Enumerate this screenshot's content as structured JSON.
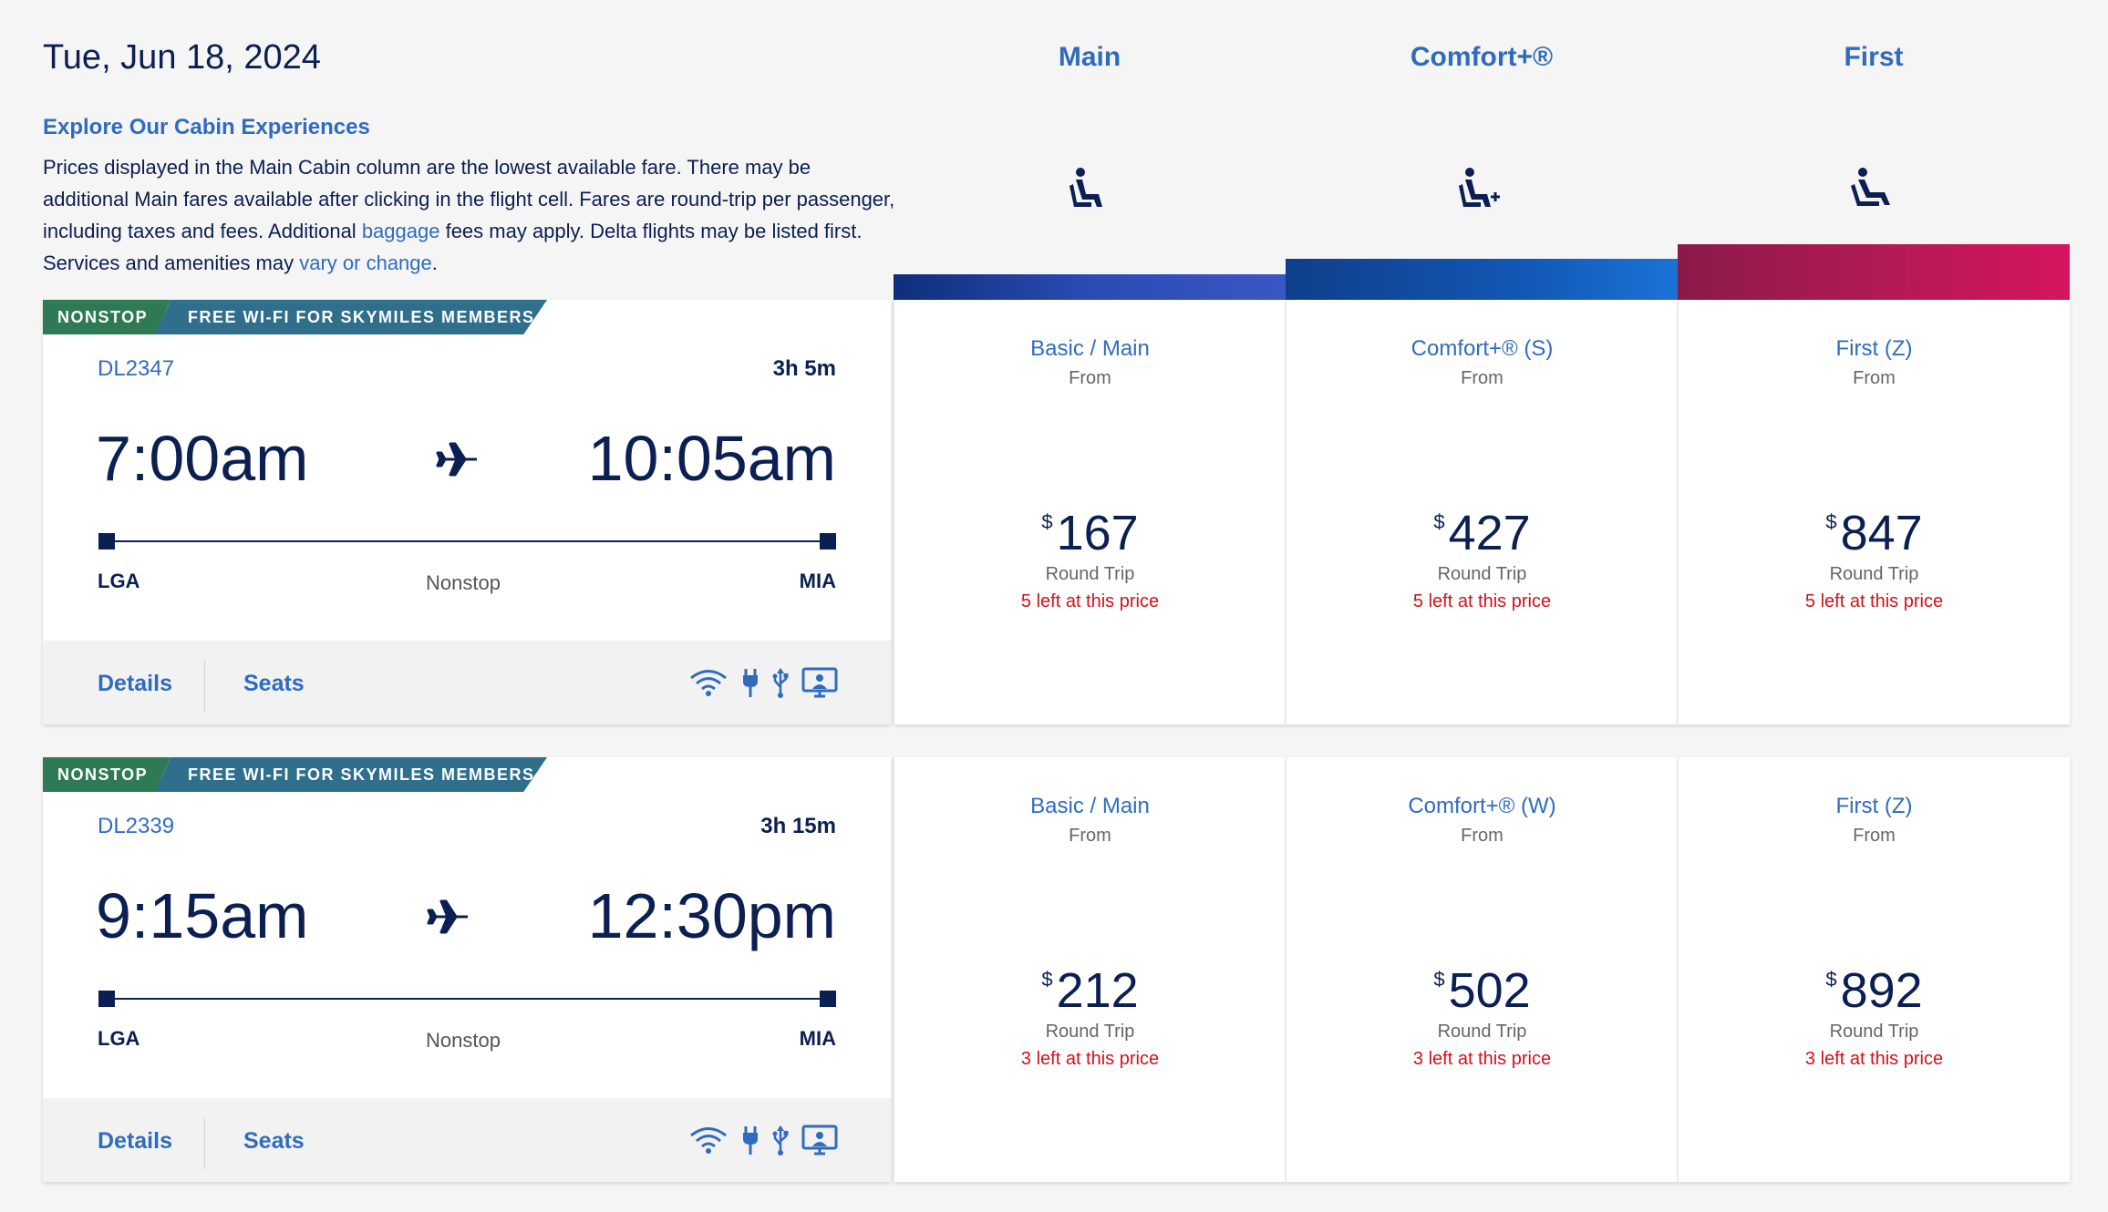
{
  "header": {
    "date": "Tue, Jun 18, 2024",
    "explore_title": "Explore Our Cabin Experiences",
    "description_1": "Prices displayed in the Main Cabin column are the lowest available fare. There may be additional Main fares available after clicking in the flight cell. Fares are round-trip per passenger, including taxes and fees. Additional ",
    "baggage_link": "baggage",
    "description_2": " fees may apply. Delta flights may be listed first. Services and amenities may ",
    "vary_link": "vary or change",
    "description_end": "."
  },
  "cabins": [
    {
      "name": "Main",
      "icon": "seat-icon",
      "color": "#2c4bb5"
    },
    {
      "name": "Comfort+®",
      "icon": "seat-plus-icon",
      "color": "#1257b5"
    },
    {
      "name": "First",
      "icon": "seat-recline-icon",
      "color": "#b41a55"
    }
  ],
  "flights": [
    {
      "tag_nonstop": "NONSTOP",
      "tag_wifi": "FREE WI-FI FOR SKYMILES MEMBERS",
      "flight_number": "DL2347",
      "duration": "3h 5m",
      "depart_time": "7:00am",
      "arrive_time": "10:05am",
      "origin": "LGA",
      "destination": "MIA",
      "stops": "Nonstop",
      "details_label": "Details",
      "seats_label": "Seats",
      "amenities": [
        "wifi-icon",
        "power-icon",
        "usb-icon",
        "entertainment-icon"
      ],
      "fares": [
        {
          "name": "Basic / Main",
          "from": "From",
          "currency": "$",
          "price": "167",
          "trip": "Round Trip",
          "availability": "5 left at this price"
        },
        {
          "name": "Comfort+® (S)",
          "from": "From",
          "currency": "$",
          "price": "427",
          "trip": "Round Trip",
          "availability": "5 left at this price"
        },
        {
          "name": "First (Z)",
          "from": "From",
          "currency": "$",
          "price": "847",
          "trip": "Round Trip",
          "availability": "5 left at this price"
        }
      ]
    },
    {
      "tag_nonstop": "NONSTOP",
      "tag_wifi": "FREE WI-FI FOR SKYMILES MEMBERS",
      "flight_number": "DL2339",
      "duration": "3h 15m",
      "depart_time": "9:15am",
      "arrive_time": "12:30pm",
      "origin": "LGA",
      "destination": "MIA",
      "stops": "Nonstop",
      "details_label": "Details",
      "seats_label": "Seats",
      "amenities": [
        "wifi-icon",
        "power-icon",
        "usb-icon",
        "entertainment-icon"
      ],
      "fares": [
        {
          "name": "Basic / Main",
          "from": "From",
          "currency": "$",
          "price": "212",
          "trip": "Round Trip",
          "availability": "3 left at this price"
        },
        {
          "name": "Comfort+® (W)",
          "from": "From",
          "currency": "$",
          "price": "502",
          "trip": "Round Trip",
          "availability": "3 left at this price"
        },
        {
          "name": "First (Z)",
          "from": "From",
          "currency": "$",
          "price": "892",
          "trip": "Round Trip",
          "availability": "3 left at this price"
        }
      ]
    }
  ],
  "colors": {
    "navy": "#0b1f52",
    "link_blue": "#2f6cbf",
    "alert_red": "#d0121b",
    "nonstop_green": "#2e7a55",
    "wifi_teal": "#2f6f8c"
  }
}
